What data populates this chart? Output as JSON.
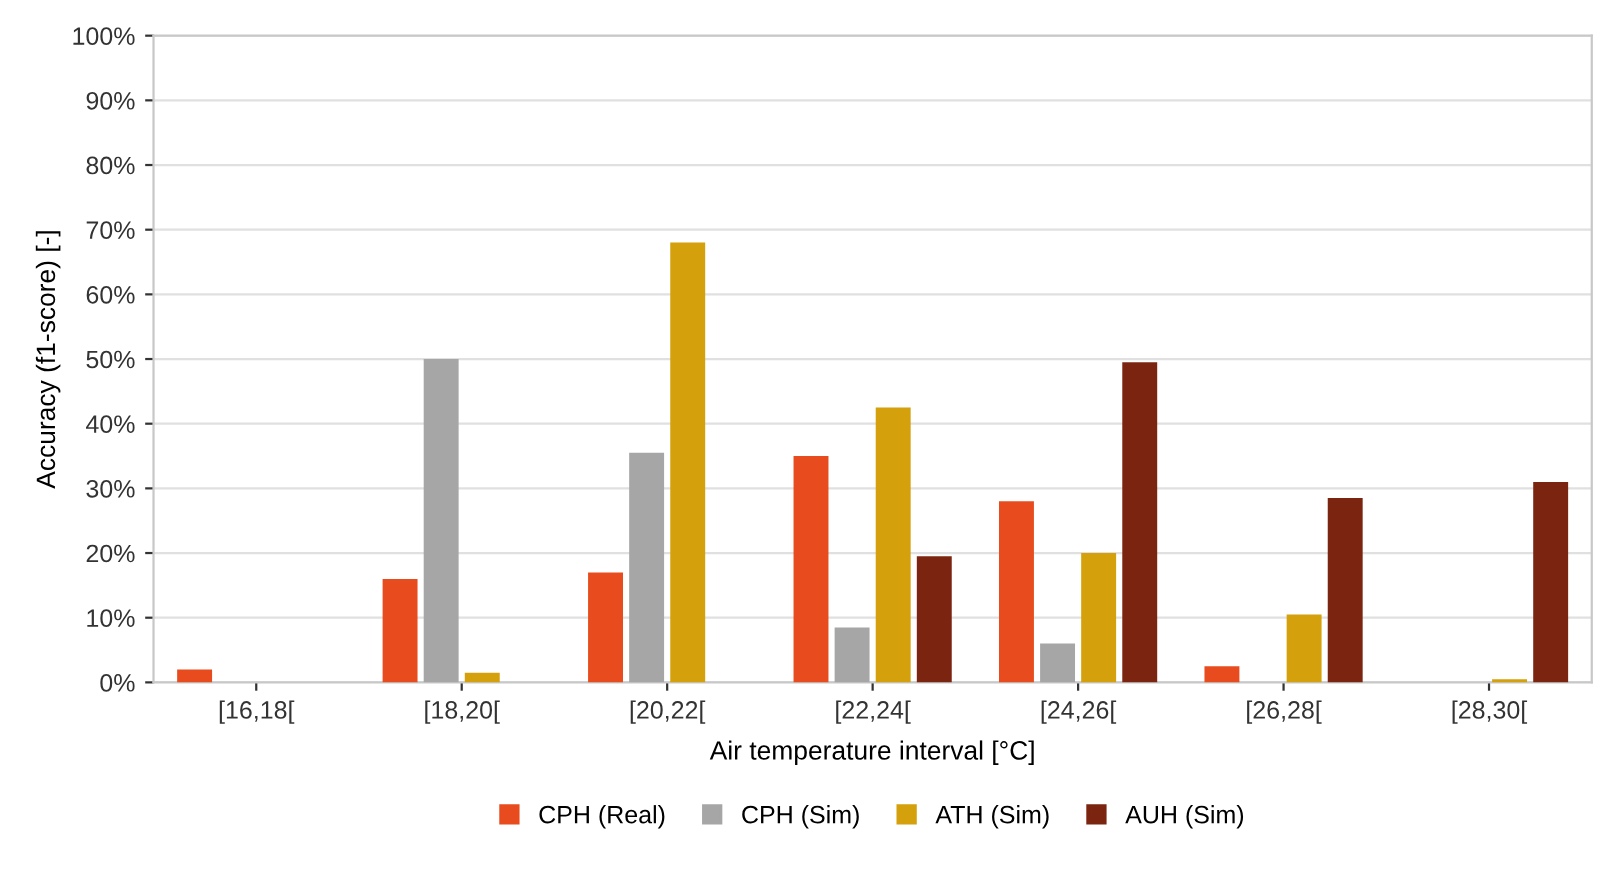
{
  "chart_data": {
    "type": "bar",
    "xlabel": "Air temperature interval [°C]",
    "ylabel": "Accuracy (f1-score) [-]",
    "categories": [
      "[16,18[",
      "[18,20[",
      "[20,22[",
      "[22,24[",
      "[24,26[",
      "[26,28[",
      "[28,30["
    ],
    "series": [
      {
        "name": "CPH (Real)",
        "color": "#e84c1e",
        "values": [
          2,
          16,
          17,
          35,
          28,
          2.5,
          0
        ]
      },
      {
        "name": "CPH (Sim)",
        "color": "#a6a6a6",
        "values": [
          0,
          50,
          35.5,
          8.5,
          6,
          0,
          0
        ]
      },
      {
        "name": "ATH (Sim)",
        "color": "#d4a00c",
        "values": [
          0,
          1.5,
          68,
          42.5,
          20,
          10.5,
          0.5
        ]
      },
      {
        "name": "AUH (Sim)",
        "color": "#7b2410",
        "values": [
          0,
          0,
          0,
          19.5,
          49.5,
          28.5,
          31
        ]
      }
    ],
    "ylim": [
      0,
      100
    ],
    "yticks": [
      {
        "value": 0,
        "label": "0%"
      },
      {
        "value": 10,
        "label": "10%"
      },
      {
        "value": 20,
        "label": "20%"
      },
      {
        "value": 30,
        "label": "30%"
      },
      {
        "value": 40,
        "label": "40%"
      },
      {
        "value": 50,
        "label": "50%"
      },
      {
        "value": 60,
        "label": "60%"
      },
      {
        "value": 70,
        "label": "70%"
      },
      {
        "value": 80,
        "label": "80%"
      },
      {
        "value": 90,
        "label": "90%"
      },
      {
        "value": 100,
        "label": "100%"
      }
    ],
    "grid": "y",
    "legend": "bottom"
  }
}
